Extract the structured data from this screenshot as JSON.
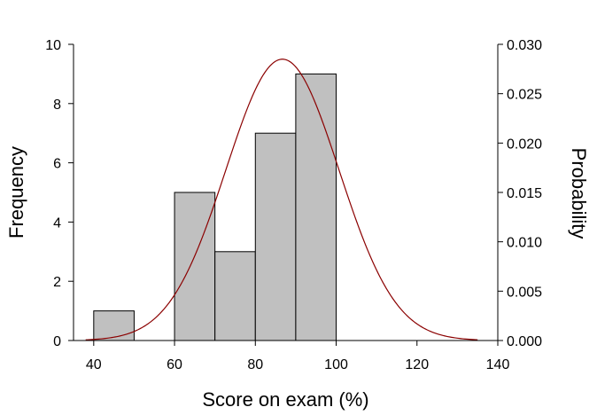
{
  "chart_data": {
    "type": "bar",
    "subtype": "histogram-with-normal-curve",
    "xlabel": "Score on exam (%)",
    "ylabel": "Frequency",
    "y2label": "Probability",
    "xlim": [
      35,
      140
    ],
    "ylim": [
      0,
      10
    ],
    "y2lim": [
      0,
      0.03
    ],
    "x_ticks": [
      "40",
      "60",
      "80",
      "100",
      "120",
      "140"
    ],
    "y_ticks": [
      "0",
      "2",
      "4",
      "6",
      "8",
      "10"
    ],
    "y2_ticks": [
      "0.000",
      "0.005",
      "0.010",
      "0.015",
      "0.020",
      "0.025",
      "0.030"
    ],
    "bins": [
      {
        "start": 40,
        "end": 50,
        "value": 1
      },
      {
        "start": 60,
        "end": 70,
        "value": 5
      },
      {
        "start": 70,
        "end": 80,
        "value": 3
      },
      {
        "start": 80,
        "end": 90,
        "value": 7
      },
      {
        "start": 90,
        "end": 100,
        "value": 9
      }
    ],
    "normal_curve": {
      "mean": 86.7,
      "sd": 14.0,
      "x_range": [
        38,
        135
      ],
      "color": "#8b0000",
      "axis": "y2"
    },
    "bar_color": "#c0c0c0",
    "grid": false
  }
}
